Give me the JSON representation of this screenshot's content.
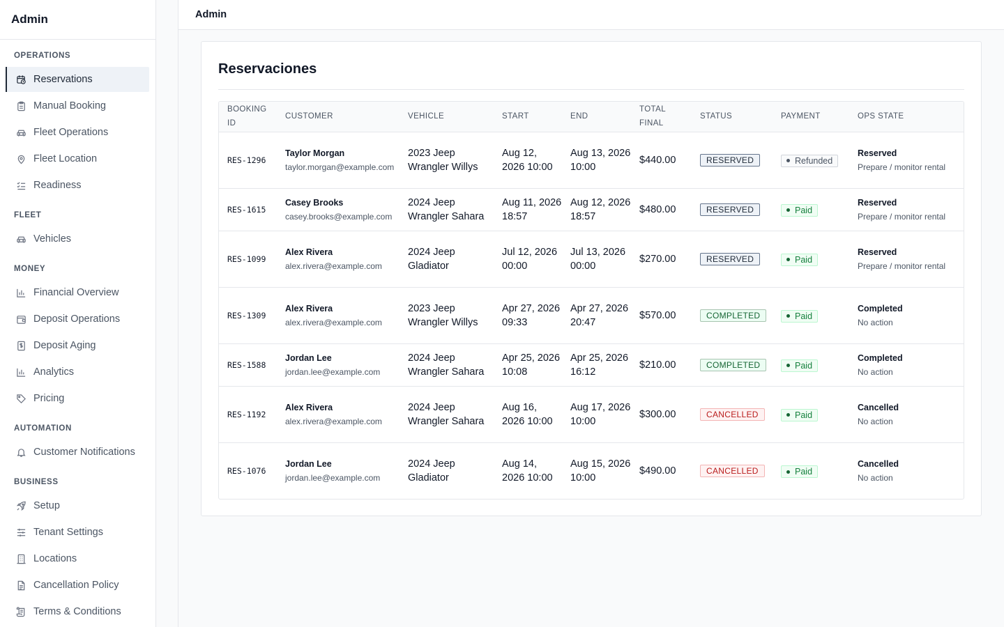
{
  "sidebar": {
    "brand": "Admin",
    "sections": [
      {
        "heading": "OPERATIONS",
        "items": [
          {
            "label": "Reservations",
            "icon": "calendar-clock-icon",
            "active": true
          },
          {
            "label": "Manual Booking",
            "icon": "clipboard-icon"
          },
          {
            "label": "Fleet Operations",
            "icon": "car-icon"
          },
          {
            "label": "Fleet Location",
            "icon": "map-pin-icon"
          },
          {
            "label": "Readiness",
            "icon": "checklist-icon"
          }
        ]
      },
      {
        "heading": "FLEET",
        "items": [
          {
            "label": "Vehicles",
            "icon": "car-icon"
          }
        ]
      },
      {
        "heading": "MONEY",
        "items": [
          {
            "label": "Financial Overview",
            "icon": "bar-chart-icon"
          },
          {
            "label": "Deposit Operations",
            "icon": "wallet-icon"
          },
          {
            "label": "Deposit Aging",
            "icon": "dollar-document-icon"
          },
          {
            "label": "Analytics",
            "icon": "bar-chart-icon"
          },
          {
            "label": "Pricing",
            "icon": "tag-icon"
          }
        ]
      },
      {
        "heading": "AUTOMATION",
        "items": [
          {
            "label": "Customer Notifications",
            "icon": "bell-icon"
          }
        ]
      },
      {
        "heading": "BUSINESS",
        "items": [
          {
            "label": "Setup",
            "icon": "rocket-icon"
          },
          {
            "label": "Tenant Settings",
            "icon": "sliders-icon"
          },
          {
            "label": "Locations",
            "icon": "building-icon"
          },
          {
            "label": "Cancellation Policy",
            "icon": "document-icon"
          },
          {
            "label": "Terms & Conditions",
            "icon": "scroll-icon"
          }
        ]
      }
    ]
  },
  "topbar": {
    "title": "Admin"
  },
  "page": {
    "title": "Reservaciones",
    "columns": {
      "booking_id": "BOOKING ID",
      "customer": "CUSTOMER",
      "vehicle": "VEHICLE",
      "start": "START",
      "end": "END",
      "total": "TOTAL FINAL",
      "status": "STATUS",
      "payment": "PAYMENT",
      "ops": "OPS STATE"
    },
    "rows": [
      {
        "id": "RES-1296",
        "name": "Taylor Morgan",
        "email": "taylor.morgan@example.com",
        "vehicle": "2023 Jeep Wrangler Willys",
        "start": "Aug 12, 2026 10:00",
        "end": "Aug 13, 2026 10:00",
        "total": "$440.00",
        "status": "RESERVED",
        "status_kind": "reserved",
        "payment": "Refunded",
        "payment_kind": "refunded",
        "ops_title": "Reserved",
        "ops_sub": "Prepare / monitor rental",
        "tall": true
      },
      {
        "id": "RES-1615",
        "name": "Casey Brooks",
        "email": "casey.brooks@example.com",
        "vehicle": "2024 Jeep Wrangler Sahara",
        "start": "Aug 11, 2026 18:57",
        "end": "Aug 12, 2026 18:57",
        "total": "$480.00",
        "status": "RESERVED",
        "status_kind": "reserved",
        "payment": "Paid",
        "payment_kind": "paid",
        "ops_title": "Reserved",
        "ops_sub": "Prepare / monitor rental",
        "tall": false
      },
      {
        "id": "RES-1099",
        "name": "Alex Rivera",
        "email": "alex.rivera@example.com",
        "vehicle": "2024 Jeep Gladiator",
        "start": "Jul 12, 2026 00:00",
        "end": "Jul 13, 2026 00:00",
        "total": "$270.00",
        "status": "RESERVED",
        "status_kind": "reserved",
        "payment": "Paid",
        "payment_kind": "paid",
        "ops_title": "Reserved",
        "ops_sub": "Prepare / monitor rental",
        "tall": true
      },
      {
        "id": "RES-1309",
        "name": "Alex Rivera",
        "email": "alex.rivera@example.com",
        "vehicle": "2023 Jeep Wrangler Willys",
        "start": "Apr 27, 2026 09:33",
        "end": "Apr 27, 2026 20:47",
        "total": "$570.00",
        "status": "COMPLETED",
        "status_kind": "completed",
        "payment": "Paid",
        "payment_kind": "paid",
        "ops_title": "Completed",
        "ops_sub": "No action",
        "tall": true
      },
      {
        "id": "RES-1588",
        "name": "Jordan Lee",
        "email": "jordan.lee@example.com",
        "vehicle": "2024 Jeep Wrangler Sahara",
        "start": "Apr 25, 2026 10:08",
        "end": "Apr 25, 2026 16:12",
        "total": "$210.00",
        "status": "COMPLETED",
        "status_kind": "completed",
        "payment": "Paid",
        "payment_kind": "paid",
        "ops_title": "Completed",
        "ops_sub": "No action",
        "tall": false
      },
      {
        "id": "RES-1192",
        "name": "Alex Rivera",
        "email": "alex.rivera@example.com",
        "vehicle": "2024 Jeep Wrangler Sahara",
        "start": "Aug 16, 2026 10:00",
        "end": "Aug 17, 2026 10:00",
        "total": "$300.00",
        "status": "CANCELLED",
        "status_kind": "cancelled",
        "payment": "Paid",
        "payment_kind": "paid",
        "ops_title": "Cancelled",
        "ops_sub": "No action",
        "tall": true
      },
      {
        "id": "RES-1076",
        "name": "Jordan Lee",
        "email": "jordan.lee@example.com",
        "vehicle": "2024 Jeep Gladiator",
        "start": "Aug 14, 2026 10:00",
        "end": "Aug 15, 2026 10:00",
        "total": "$490.00",
        "status": "CANCELLED",
        "status_kind": "cancelled",
        "payment": "Paid",
        "payment_kind": "paid",
        "ops_title": "Cancelled",
        "ops_sub": "No action",
        "tall": true
      }
    ]
  }
}
